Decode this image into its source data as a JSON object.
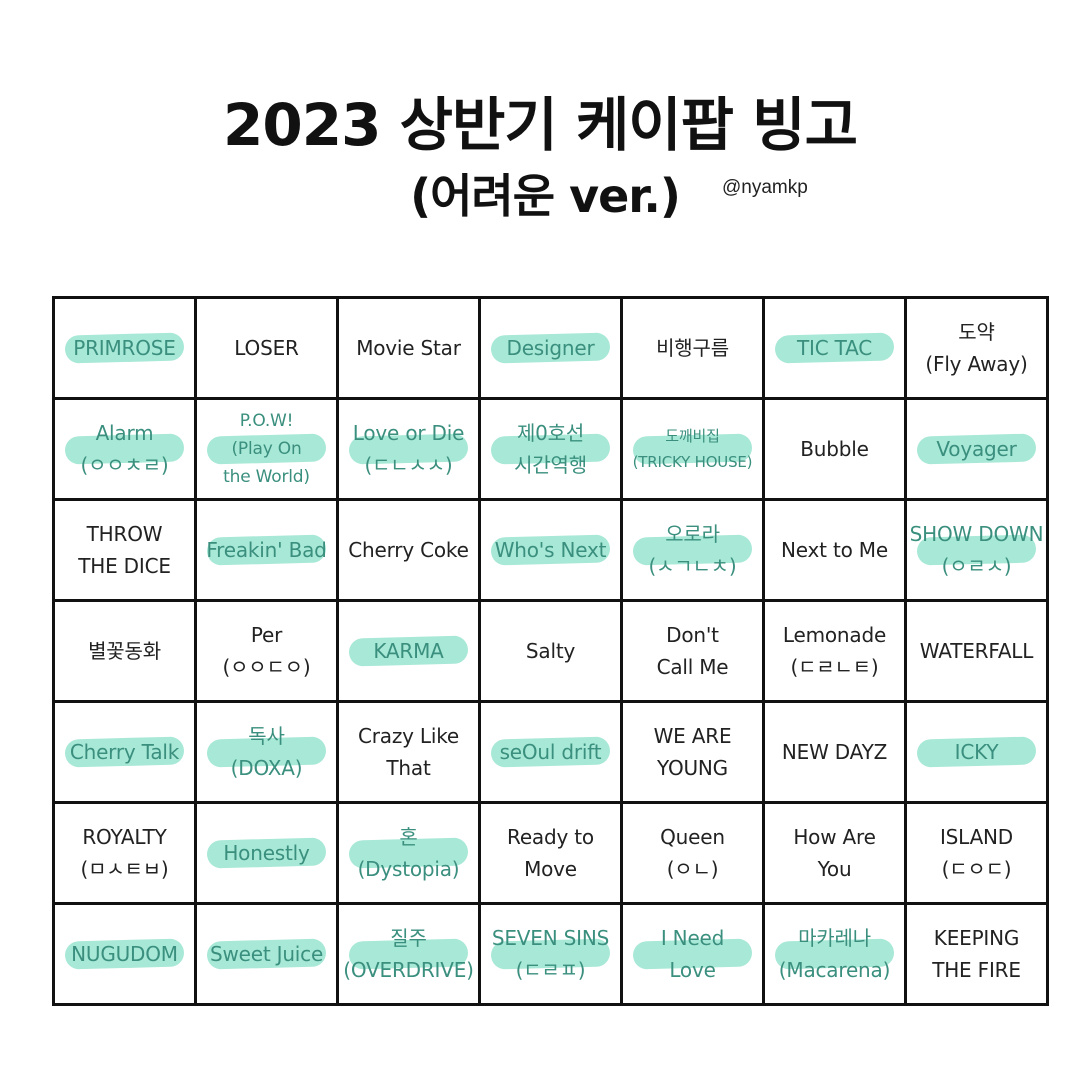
{
  "title": "2023 상반기 케이팝 빙고",
  "subtitle": "(어려운 ver.)",
  "handle": "@nyamkp",
  "board": {
    "rows": [
      [
        {
          "text": "PRIMROSE",
          "hl": true
        },
        {
          "text": "LOSER",
          "hl": false
        },
        {
          "text": "Movie Star",
          "hl": false
        },
        {
          "text": "Designer",
          "hl": true
        },
        {
          "text": "비행구름",
          "hl": false
        },
        {
          "text": "TIC TAC",
          "hl": true
        },
        {
          "text": "도약\n(Fly Away)",
          "hl": false
        }
      ],
      [
        {
          "text": "Alarm\n(ㅇㅇㅊㄹ)",
          "hl": true
        },
        {
          "text": "P.O.W!\n(Play On\nthe World)",
          "hl": true
        },
        {
          "text": "Love or Die\n(ㄷㄴㅅㅅ)",
          "hl": true
        },
        {
          "text": "제0호선\n시간역행",
          "hl": true
        },
        {
          "text": "도깨비집\n(TRICKY HOUSE)",
          "hl": true
        },
        {
          "text": "Bubble",
          "hl": false
        },
        {
          "text": "Voyager",
          "hl": true
        }
      ],
      [
        {
          "text": "THROW\nTHE DICE",
          "hl": false
        },
        {
          "text": "Freakin' Bad",
          "hl": true
        },
        {
          "text": "Cherry Coke",
          "hl": false
        },
        {
          "text": "Who's Next",
          "hl": true
        },
        {
          "text": "오로라\n(ㅅㄱㄴㅊ)",
          "hl": true
        },
        {
          "text": "Next to Me",
          "hl": false
        },
        {
          "text": "SHOW DOWN\n(ㅇㄹㅅ)",
          "hl": true
        }
      ],
      [
        {
          "text": "별꽃동화",
          "hl": false
        },
        {
          "text": "Per\n(ㅇㅇㄷㅇ)",
          "hl": false
        },
        {
          "text": "KARMA",
          "hl": true
        },
        {
          "text": "Salty",
          "hl": false
        },
        {
          "text": "Don't\nCall Me",
          "hl": false
        },
        {
          "text": "Lemonade\n(ㄷㄹㄴㅌ)",
          "hl": false
        },
        {
          "text": "WATERFALL",
          "hl": false
        }
      ],
      [
        {
          "text": "Cherry Talk",
          "hl": true
        },
        {
          "text": "독사\n(DOXA)",
          "hl": true
        },
        {
          "text": "Crazy Like\nThat",
          "hl": false
        },
        {
          "text": "seOul drift",
          "hl": true
        },
        {
          "text": "WE ARE\nYOUNG",
          "hl": false
        },
        {
          "text": "NEW DAYZ",
          "hl": false
        },
        {
          "text": "ICKY",
          "hl": true
        }
      ],
      [
        {
          "text": "ROYALTY\n(ㅁㅅㅌㅂ)",
          "hl": false
        },
        {
          "text": "Honestly",
          "hl": true
        },
        {
          "text": "혼\n(Dystopia)",
          "hl": true
        },
        {
          "text": "Ready to\nMove",
          "hl": false
        },
        {
          "text": "Queen\n(ㅇㄴ)",
          "hl": false
        },
        {
          "text": "How Are\nYou",
          "hl": false
        },
        {
          "text": "ISLAND\n(ㄷㅇㄷ)",
          "hl": false
        }
      ],
      [
        {
          "text": "NUGUDOM",
          "hl": true
        },
        {
          "text": "Sweet Juice",
          "hl": true
        },
        {
          "text": "질주\n(OVERDRIVE)",
          "hl": true
        },
        {
          "text": "SEVEN SINS\n(ㄷㄹㅍ)",
          "hl": true
        },
        {
          "text": "I Need\nLove",
          "hl": true
        },
        {
          "text": "마카레나\n(Macarena)",
          "hl": true
        },
        {
          "text": "KEEPING\nTHE FIRE",
          "hl": false
        }
      ]
    ]
  },
  "colors": {
    "highlight": "#a8e8d6",
    "highlight_text": "#3a8f7e",
    "border": "#111111"
  }
}
